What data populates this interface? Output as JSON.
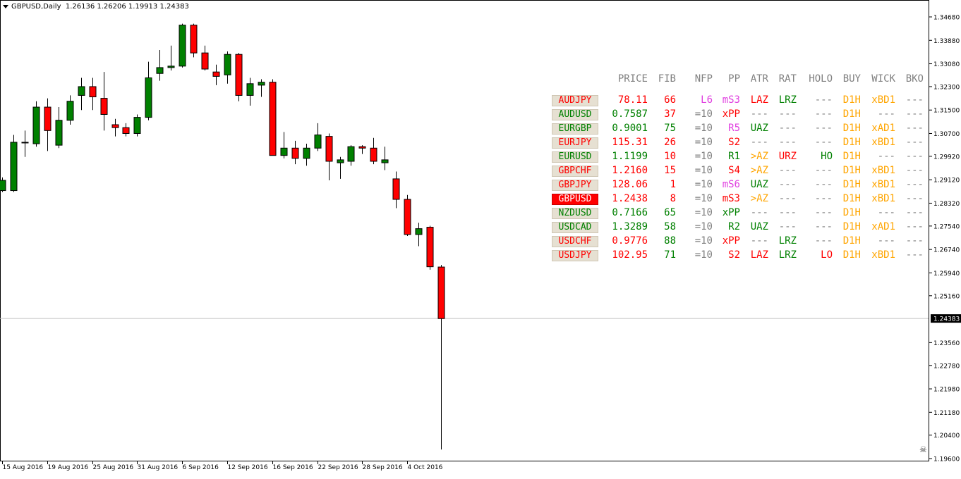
{
  "chart": {
    "symbol_timeframe": "GBPUSD,Daily",
    "ohlc": "1.26136 1.26206 1.19913 1.24383",
    "current_price": "1.24383",
    "current_price_value": 1.24383,
    "y_min": 1.196,
    "y_max": 1.3468,
    "price_labels": [
      "1.34680",
      "1.33880",
      "1.33080",
      "1.32300",
      "1.31500",
      "1.30700",
      "1.29920",
      "1.29120",
      "1.28320",
      "1.27540",
      "1.26740",
      "1.25940",
      "1.25160",
      "1.23560",
      "1.22780",
      "1.21980",
      "1.21180",
      "1.20400",
      "1.19600"
    ],
    "date_labels": [
      "15 Aug 2016",
      "19 Aug 2016",
      "25 Aug 2016",
      "31 Aug 2016",
      "6 Sep 2016",
      "12 Sep 2016",
      "16 Sep 2016",
      "22 Sep 2016",
      "28 Sep 2016",
      "4 Oct 2016"
    ],
    "bull_color": "#008000",
    "bear_color": "#ff0000",
    "close_icon": "skull-icon"
  },
  "chart_data": {
    "type": "candlestick",
    "title": "GBPUSD,Daily",
    "ylim": [
      1.196,
      1.3468
    ],
    "candles": [
      {
        "o": 1.2875,
        "h": 1.292,
        "l": 1.287,
        "c": 1.291
      },
      {
        "o": 1.2875,
        "h": 1.3065,
        "l": 1.287,
        "c": 1.304
      },
      {
        "o": 1.304,
        "h": 1.308,
        "l": 1.299,
        "c": 1.304
      },
      {
        "o": 1.3035,
        "h": 1.318,
        "l": 1.3025,
        "c": 1.316
      },
      {
        "o": 1.316,
        "h": 1.319,
        "l": 1.301,
        "c": 1.308
      },
      {
        "o": 1.303,
        "h": 1.316,
        "l": 1.302,
        "c": 1.3115
      },
      {
        "o": 1.3115,
        "h": 1.32,
        "l": 1.31,
        "c": 1.318
      },
      {
        "o": 1.32,
        "h": 1.326,
        "l": 1.315,
        "c": 1.323
      },
      {
        "o": 1.323,
        "h": 1.326,
        "l": 1.315,
        "c": 1.3195
      },
      {
        "o": 1.319,
        "h": 1.328,
        "l": 1.308,
        "c": 1.3135
      },
      {
        "o": 1.31,
        "h": 1.312,
        "l": 1.306,
        "c": 1.309
      },
      {
        "o": 1.309,
        "h": 1.3105,
        "l": 1.306,
        "c": 1.307
      },
      {
        "o": 1.307,
        "h": 1.3135,
        "l": 1.306,
        "c": 1.3125
      },
      {
        "o": 1.3125,
        "h": 1.3315,
        "l": 1.3115,
        "c": 1.326
      },
      {
        "o": 1.3275,
        "h": 1.3355,
        "l": 1.325,
        "c": 1.3295
      },
      {
        "o": 1.3295,
        "h": 1.337,
        "l": 1.3285,
        "c": 1.33
      },
      {
        "o": 1.33,
        "h": 1.3445,
        "l": 1.3295,
        "c": 1.344
      },
      {
        "o": 1.344,
        "h": 1.3445,
        "l": 1.333,
        "c": 1.3345
      },
      {
        "o": 1.3345,
        "h": 1.337,
        "l": 1.3285,
        "c": 1.329
      },
      {
        "o": 1.328,
        "h": 1.3305,
        "l": 1.3235,
        "c": 1.3265
      },
      {
        "o": 1.327,
        "h": 1.335,
        "l": 1.324,
        "c": 1.334
      },
      {
        "o": 1.334,
        "h": 1.3345,
        "l": 1.318,
        "c": 1.32
      },
      {
        "o": 1.32,
        "h": 1.326,
        "l": 1.3165,
        "c": 1.324
      },
      {
        "o": 1.3235,
        "h": 1.3255,
        "l": 1.3195,
        "c": 1.3245
      },
      {
        "o": 1.3245,
        "h": 1.3255,
        "l": 1.2995,
        "c": 1.2995
      },
      {
        "o": 1.2995,
        "h": 1.3075,
        "l": 1.2985,
        "c": 1.302
      },
      {
        "o": 1.302,
        "h": 1.3045,
        "l": 1.2965,
        "c": 1.2985
      },
      {
        "o": 1.2985,
        "h": 1.3035,
        "l": 1.296,
        "c": 1.302
      },
      {
        "o": 1.302,
        "h": 1.3105,
        "l": 1.301,
        "c": 1.3065
      },
      {
        "o": 1.306,
        "h": 1.307,
        "l": 1.291,
        "c": 1.2975
      },
      {
        "o": 1.297,
        "h": 1.299,
        "l": 1.2915,
        "c": 1.298
      },
      {
        "o": 1.2975,
        "h": 1.303,
        "l": 1.296,
        "c": 1.3025
      },
      {
        "o": 1.3025,
        "h": 1.303,
        "l": 1.3,
        "c": 1.302
      },
      {
        "o": 1.302,
        "h": 1.3055,
        "l": 1.2965,
        "c": 1.2975
      },
      {
        "o": 1.297,
        "h": 1.3025,
        "l": 1.2945,
        "c": 1.298
      },
      {
        "o": 1.2915,
        "h": 1.294,
        "l": 1.2815,
        "c": 1.2845
      },
      {
        "o": 1.2845,
        "h": 1.286,
        "l": 1.272,
        "c": 1.2725
      },
      {
        "o": 1.2725,
        "h": 1.2765,
        "l": 1.2685,
        "c": 1.2745
      },
      {
        "o": 1.275,
        "h": 1.2755,
        "l": 1.2605,
        "c": 1.2615
      },
      {
        "o": 1.2614,
        "h": 1.2621,
        "l": 1.1991,
        "c": 1.2438
      }
    ]
  },
  "dashboard": {
    "headers": [
      "PRICE",
      "FIB",
      "NFP",
      "PP",
      "ATR",
      "RAT",
      "HOLO",
      "BUY",
      "WICK",
      "BKO"
    ],
    "rows": [
      {
        "sym": "AUDJPY",
        "price": "78.11",
        "fib": "66",
        "nfp": "L6",
        "pp": "mS3",
        "atr": "LAZ",
        "rat": "LRZ",
        "holo": "---",
        "buy": "D1H",
        "wick": "xBD1",
        "bko": "---",
        "c": {
          "sym": "#ff0000",
          "price": "#ff0000",
          "fib": "#ff0000",
          "nfp": "#e040e0",
          "pp": "#e040e0",
          "atr": "#ff0000",
          "rat": "#008000",
          "holo": "#808080",
          "buy": "#ffa500",
          "wick": "#ffa500",
          "bko": "#808080"
        }
      },
      {
        "sym": "AUDUSD",
        "price": "0.7587",
        "fib": "37",
        "nfp": "=10",
        "pp": "xPP",
        "atr": "---",
        "rat": "---",
        "holo": "---",
        "buy": "D1H",
        "wick": "---",
        "bko": "---",
        "c": {
          "sym": "#008000",
          "price": "#008000",
          "fib": "#ff0000",
          "nfp": "#808080",
          "pp": "#ff0000",
          "atr": "#808080",
          "rat": "#808080",
          "holo": "#808080",
          "buy": "#ffa500",
          "wick": "#808080",
          "bko": "#808080"
        }
      },
      {
        "sym": "EURGBP",
        "price": "0.9001",
        "fib": "75",
        "nfp": "=10",
        "pp": "R5",
        "atr": "UAZ",
        "rat": "---",
        "holo": "---",
        "buy": "D1H",
        "wick": "xAD1",
        "bko": "---",
        "c": {
          "sym": "#008000",
          "price": "#008000",
          "fib": "#008000",
          "nfp": "#808080",
          "pp": "#e040e0",
          "atr": "#008000",
          "rat": "#808080",
          "holo": "#808080",
          "buy": "#ffa500",
          "wick": "#ffa500",
          "bko": "#808080"
        }
      },
      {
        "sym": "EURJPY",
        "price": "115.31",
        "fib": "26",
        "nfp": "=10",
        "pp": "S2",
        "atr": "---",
        "rat": "---",
        "holo": "---",
        "buy": "D1H",
        "wick": "xBD1",
        "bko": "---",
        "c": {
          "sym": "#ff0000",
          "price": "#ff0000",
          "fib": "#ff0000",
          "nfp": "#808080",
          "pp": "#ff0000",
          "atr": "#808080",
          "rat": "#808080",
          "holo": "#808080",
          "buy": "#ffa500",
          "wick": "#ffa500",
          "bko": "#808080"
        }
      },
      {
        "sym": "EURUSD",
        "price": "1.1199",
        "fib": "10",
        "nfp": "=10",
        "pp": "R1",
        "atr": ">AZ",
        "rat": "URZ",
        "holo": "HO",
        "buy": "D1H",
        "wick": "---",
        "bko": "---",
        "c": {
          "sym": "#008000",
          "price": "#008000",
          "fib": "#ff0000",
          "nfp": "#808080",
          "pp": "#008000",
          "atr": "#ffa500",
          "rat": "#ff0000",
          "holo": "#008000",
          "buy": "#ffa500",
          "wick": "#808080",
          "bko": "#808080"
        }
      },
      {
        "sym": "GBPCHF",
        "price": "1.2160",
        "fib": "15",
        "nfp": "=10",
        "pp": "S4",
        "atr": ">AZ",
        "rat": "---",
        "holo": "---",
        "buy": "D1H",
        "wick": "xBD1",
        "bko": "---",
        "c": {
          "sym": "#ff0000",
          "price": "#ff0000",
          "fib": "#ff0000",
          "nfp": "#808080",
          "pp": "#ff0000",
          "atr": "#ffa500",
          "rat": "#808080",
          "holo": "#808080",
          "buy": "#ffa500",
          "wick": "#ffa500",
          "bko": "#808080"
        }
      },
      {
        "sym": "GBPJPY",
        "price": "128.06",
        "fib": "1",
        "nfp": "=10",
        "pp": "mS6",
        "atr": "UAZ",
        "rat": "---",
        "holo": "---",
        "buy": "D1H",
        "wick": "xBD1",
        "bko": "---",
        "c": {
          "sym": "#ff0000",
          "price": "#ff0000",
          "fib": "#ff0000",
          "nfp": "#808080",
          "pp": "#e040e0",
          "atr": "#008000",
          "rat": "#808080",
          "holo": "#808080",
          "buy": "#ffa500",
          "wick": "#ffa500",
          "bko": "#808080"
        }
      },
      {
        "sym": "GBPUSD",
        "price": "1.2438",
        "fib": "8",
        "nfp": "=10",
        "pp": "mS3",
        "atr": ">AZ",
        "rat": "---",
        "holo": "---",
        "buy": "D1H",
        "wick": "xBD1",
        "bko": "---",
        "active": true,
        "c": {
          "sym": "#ffffff",
          "price": "#ff0000",
          "fib": "#ff0000",
          "nfp": "#808080",
          "pp": "#ff0000",
          "atr": "#ffa500",
          "rat": "#808080",
          "holo": "#808080",
          "buy": "#ffa500",
          "wick": "#ffa500",
          "bko": "#808080"
        }
      },
      {
        "sym": "NZDUSD",
        "price": "0.7166",
        "fib": "65",
        "nfp": "=10",
        "pp": "xPP",
        "atr": "---",
        "rat": "---",
        "holo": "---",
        "buy": "D1H",
        "wick": "---",
        "bko": "---",
        "c": {
          "sym": "#008000",
          "price": "#008000",
          "fib": "#008000",
          "nfp": "#808080",
          "pp": "#008000",
          "atr": "#808080",
          "rat": "#808080",
          "holo": "#808080",
          "buy": "#ffa500",
          "wick": "#808080",
          "bko": "#808080"
        }
      },
      {
        "sym": "USDCAD",
        "price": "1.3289",
        "fib": "58",
        "nfp": "=10",
        "pp": "R2",
        "atr": "UAZ",
        "rat": "---",
        "holo": "---",
        "buy": "D1H",
        "wick": "xAD1",
        "bko": "---",
        "c": {
          "sym": "#008000",
          "price": "#008000",
          "fib": "#008000",
          "nfp": "#808080",
          "pp": "#008000",
          "atr": "#008000",
          "rat": "#808080",
          "holo": "#808080",
          "buy": "#ffa500",
          "wick": "#ffa500",
          "bko": "#808080"
        }
      },
      {
        "sym": "USDCHF",
        "price": "0.9776",
        "fib": "88",
        "nfp": "=10",
        "pp": "xPP",
        "atr": "---",
        "rat": "LRZ",
        "holo": "---",
        "buy": "D1H",
        "wick": "---",
        "bko": "---",
        "c": {
          "sym": "#ff0000",
          "price": "#ff0000",
          "fib": "#008000",
          "nfp": "#808080",
          "pp": "#ff0000",
          "atr": "#808080",
          "rat": "#008000",
          "holo": "#808080",
          "buy": "#ffa500",
          "wick": "#808080",
          "bko": "#808080"
        }
      },
      {
        "sym": "USDJPY",
        "price": "102.95",
        "fib": "71",
        "nfp": "=10",
        "pp": "S2",
        "atr": "LAZ",
        "rat": "LRZ",
        "holo": "LO",
        "buy": "D1H",
        "wick": "xBD1",
        "bko": "---",
        "c": {
          "sym": "#ff0000",
          "price": "#ff0000",
          "fib": "#008000",
          "nfp": "#808080",
          "pp": "#ff0000",
          "atr": "#ff0000",
          "rat": "#008000",
          "holo": "#ff0000",
          "buy": "#ffa500",
          "wick": "#ffa500",
          "bko": "#808080"
        }
      }
    ]
  }
}
